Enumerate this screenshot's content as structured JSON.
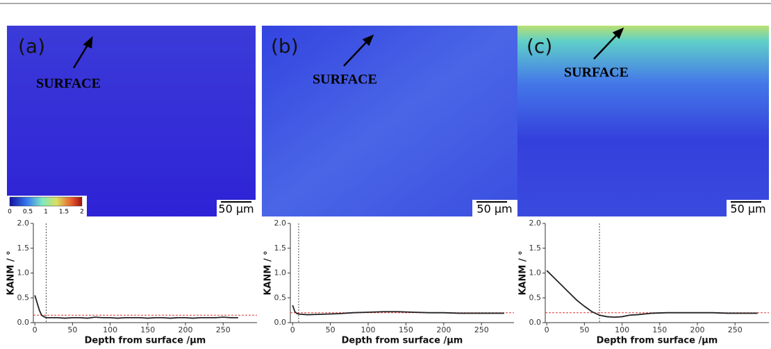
{
  "maps": [
    {
      "label": "(a)",
      "annotation": "SURFACE",
      "scale": "50 µm"
    },
    {
      "label": "(b)",
      "annotation": "SURFACE",
      "scale": "50 µm"
    },
    {
      "label": "(c)",
      "annotation": "SURFACE",
      "scale": "50 µm"
    }
  ],
  "colorbar": {
    "lim": [
      0,
      2
    ],
    "ticks": [
      0,
      0.5,
      1,
      1.5,
      2
    ]
  },
  "chart_data": [
    {
      "type": "line",
      "x_label": "Depth from surface /µm",
      "y_label": "KANM / °",
      "xlim": [
        -2,
        295
      ],
      "ylim": [
        0,
        2
      ],
      "xticks": [
        0,
        50,
        100,
        150,
        200,
        250
      ],
      "yticks": [
        {
          "value": 0,
          "label": "0.0"
        },
        {
          "value": 0.5,
          "label": "0.5"
        },
        {
          "value": 1,
          "label": "1.0"
        },
        {
          "value": 1.5,
          "label": "1.5"
        },
        {
          "value": 2,
          "label": "2.0"
        }
      ],
      "threshold_depth": 15,
      "baseline": 0.15,
      "x": [
        0,
        3,
        6,
        9,
        12,
        15,
        20,
        30,
        40,
        50,
        60,
        70,
        80,
        90,
        100,
        110,
        120,
        130,
        140,
        150,
        160,
        170,
        180,
        190,
        200,
        210,
        220,
        230,
        240,
        250,
        260,
        270
      ],
      "series": [
        {
          "color": "#222222",
          "values": [
            0.55,
            0.4,
            0.25,
            0.15,
            0.12,
            0.1,
            0.1,
            0.1,
            0.09,
            0.1,
            0.1,
            0.09,
            0.11,
            0.1,
            0.1,
            0.09,
            0.1,
            0.1,
            0.1,
            0.09,
            0.1,
            0.1,
            0.09,
            0.1,
            0.1,
            0.09,
            0.1,
            0.1,
            0.1,
            0.11,
            0.1,
            0.1
          ]
        }
      ]
    },
    {
      "type": "line",
      "x_label": "Depth from surface /µm",
      "y_label": "KANM / °",
      "xlim": [
        -3,
        293
      ],
      "ylim": [
        0,
        2
      ],
      "xticks": [
        0,
        50,
        100,
        150,
        200,
        250
      ],
      "yticks": [
        {
          "value": 0,
          "label": "0.0"
        },
        {
          "value": 0.5,
          "label": "0.5"
        },
        {
          "value": 1,
          "label": "1.0"
        },
        {
          "value": 1.5,
          "label": "1.5"
        },
        {
          "value": 2,
          "label": "2.0"
        }
      ],
      "threshold_depth": 8,
      "baseline": 0.2,
      "x": [
        0,
        3,
        6,
        10,
        20,
        40,
        60,
        80,
        100,
        120,
        140,
        160,
        180,
        200,
        220,
        240,
        260,
        280
      ],
      "series": [
        {
          "color": "#222222",
          "values": [
            0.35,
            0.22,
            0.18,
            0.17,
            0.16,
            0.17,
            0.18,
            0.2,
            0.21,
            0.22,
            0.22,
            0.21,
            0.2,
            0.2,
            0.19,
            0.19,
            0.19,
            0.19
          ]
        }
      ]
    },
    {
      "type": "line",
      "x_label": "Depth from surface /µm",
      "y_label": "KANM / °",
      "xlim": [
        -2,
        295
      ],
      "ylim": [
        0,
        2
      ],
      "xticks": [
        0,
        50,
        100,
        150,
        200,
        250
      ],
      "yticks": [
        {
          "value": 0,
          "label": "0.0"
        },
        {
          "value": 0.5,
          "label": "0.5"
        },
        {
          "value": 1,
          "label": "1.0"
        },
        {
          "value": 1.5,
          "label": "1.5"
        },
        {
          "value": 2,
          "label": "2.0"
        }
      ],
      "threshold_depth": 70,
      "baseline": 0.2,
      "x": [
        0,
        10,
        20,
        30,
        40,
        50,
        60,
        70,
        80,
        90,
        100,
        110,
        120,
        140,
        160,
        180,
        200,
        220,
        240,
        260,
        280
      ],
      "series": [
        {
          "color": "#222222",
          "values": [
            1.05,
            0.9,
            0.75,
            0.6,
            0.45,
            0.33,
            0.22,
            0.15,
            0.12,
            0.11,
            0.12,
            0.15,
            0.16,
            0.19,
            0.2,
            0.2,
            0.2,
            0.2,
            0.19,
            0.19,
            0.19
          ]
        }
      ]
    }
  ]
}
